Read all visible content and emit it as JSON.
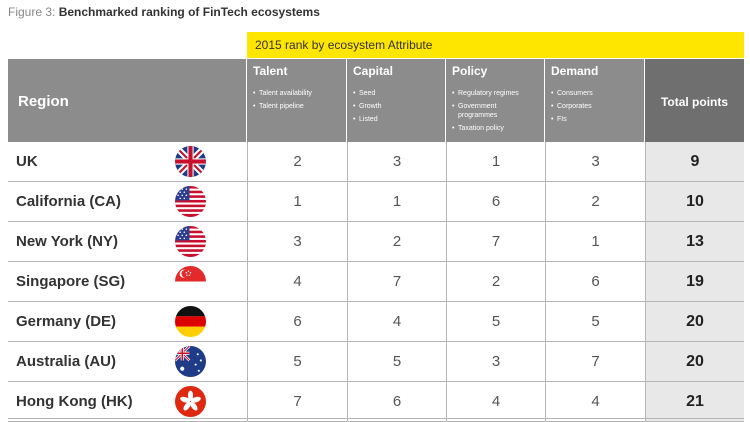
{
  "figure": {
    "label": "Figure 3:",
    "title": "Benchmarked ranking of FinTech ecosystems"
  },
  "table": {
    "group_header": "2015 rank by ecosystem Attribute",
    "region_header": "Region",
    "total_header": "Total points",
    "attributes": [
      {
        "label": "Talent",
        "items": [
          "Talent availability",
          "Talent pipeline"
        ]
      },
      {
        "label": "Capital",
        "items": [
          "Seed",
          "Growth",
          "Listed"
        ]
      },
      {
        "label": "Policy",
        "items": [
          "Regulatory regimes",
          "Government programmes",
          "Taxation policy"
        ]
      },
      {
        "label": "Demand",
        "items": [
          "Consumers",
          "Corporates",
          "FIs"
        ]
      }
    ],
    "rows": [
      {
        "region": "UK",
        "flag": "uk-flag-icon",
        "talent": "2",
        "capital": "3",
        "policy": "1",
        "demand": "3",
        "total": "9"
      },
      {
        "region": "California (CA)",
        "flag": "us-flag-icon",
        "talent": "1",
        "capital": "1",
        "policy": "6",
        "demand": "2",
        "total": "10"
      },
      {
        "region": "New York (NY)",
        "flag": "us-flag-icon",
        "talent": "3",
        "capital": "2",
        "policy": "7",
        "demand": "1",
        "total": "13"
      },
      {
        "region": "Singapore (SG)",
        "flag": "singapore-flag-icon",
        "talent": "4",
        "capital": "7",
        "policy": "2",
        "demand": "6",
        "total": "19"
      },
      {
        "region": "Germany (DE)",
        "flag": "germany-flag-icon",
        "talent": "6",
        "capital": "4",
        "policy": "5",
        "demand": "5",
        "total": "20"
      },
      {
        "region": "Australia (AU)",
        "flag": "australia-flag-icon",
        "talent": "5",
        "capital": "5",
        "policy": "3",
        "demand": "7",
        "total": "20"
      },
      {
        "region": "Hong Kong (HK)",
        "flag": "hong-kong-flag-icon",
        "talent": "7",
        "capital": "6",
        "policy": "4",
        "demand": "4",
        "total": "21"
      }
    ]
  },
  "colors": {
    "header_gray": "#8c8c8c",
    "total_header_gray": "#6f6f6f",
    "accent_yellow": "#ffe600",
    "total_cell_gray": "#e8e8e8"
  }
}
